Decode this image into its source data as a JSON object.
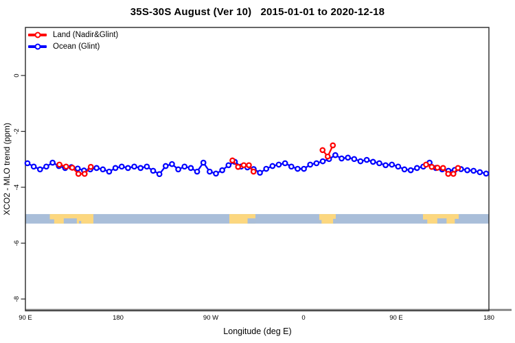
{
  "chart_data": {
    "type": "line",
    "title": "35S-30S August (Ver 10)   2015-01-01 to 2020-12-18",
    "xlabel": "Longitude (deg E)",
    "ylabel": "XCO2 - MLO trend (ppm)",
    "xlim_deg_east": [
      90,
      540
    ],
    "ylim": [
      1.72,
      -8.42
    ],
    "grid": "off",
    "legend_position": "top-left-inside",
    "x_ticks": [
      {
        "lon": 90,
        "label": "90 E"
      },
      {
        "lon": 180,
        "label": "180"
      },
      {
        "lon": 270,
        "label": "90 W"
      },
      {
        "lon": 360,
        "label": "0"
      },
      {
        "lon": 450,
        "label": "90 E"
      },
      {
        "lon": 540,
        "label": "180"
      }
    ],
    "y_ticks": [
      {
        "value": 0,
        "label": "0"
      },
      {
        "value": -2,
        "label": "-2"
      },
      {
        "value": -4,
        "label": "-4"
      },
      {
        "value": -6,
        "label": "-6"
      },
      {
        "value": -8,
        "label": "-8"
      }
    ],
    "series": [
      {
        "name": "Land (Nadir&Glint)",
        "color": "#ff0000",
        "marker": "open-circle",
        "clusters": [
          [
            [
              123,
              -3.19
            ],
            [
              129.5,
              -3.26
            ],
            [
              135.5,
              -3.3
            ],
            [
              141.5,
              -3.52
            ],
            [
              147.5,
              -3.52
            ],
            [
              153.5,
              -3.27
            ]
          ],
          [
            [
              291,
              -3.04
            ],
            [
              296.5,
              -3.27
            ],
            [
              302,
              -3.21
            ],
            [
              307,
              -3.21
            ],
            [
              311.5,
              -3.44
            ]
          ],
          [
            [
              378.5,
              -2.67
            ],
            [
              383.5,
              -2.9
            ],
            [
              388.5,
              -2.5
            ]
          ],
          [
            [
              479,
              -3.19
            ],
            [
              484.5,
              -3.27
            ],
            [
              490,
              -3.3
            ],
            [
              495.5,
              -3.31
            ],
            [
              500.5,
              -3.52
            ],
            [
              505.5,
              -3.52
            ],
            [
              510,
              -3.31
            ]
          ]
        ]
      },
      {
        "name": "Ocean (Glint)",
        "color": "#0000ff",
        "marker": "open-circle",
        "lon_start": 92,
        "lon_step": 6.1,
        "values": [
          -3.14,
          -3.26,
          -3.36,
          -3.26,
          -3.12,
          -3.24,
          -3.31,
          -3.28,
          -3.33,
          -3.4,
          -3.36,
          -3.31,
          -3.36,
          -3.44,
          -3.31,
          -3.26,
          -3.31,
          -3.26,
          -3.31,
          -3.26,
          -3.41,
          -3.53,
          -3.24,
          -3.17,
          -3.36,
          -3.26,
          -3.31,
          -3.44,
          -3.12,
          -3.44,
          -3.51,
          -3.39,
          -3.21,
          -3.09,
          -3.26,
          -3.29,
          -3.35,
          -3.48,
          -3.34,
          -3.24,
          -3.19,
          -3.14,
          -3.26,
          -3.34,
          -3.34,
          -3.19,
          -3.14,
          -3.07,
          -2.99,
          -2.85,
          -2.97,
          -2.94,
          -2.99,
          -3.07,
          -3.02,
          -3.09,
          -3.14,
          -3.21,
          -3.19,
          -3.26,
          -3.36,
          -3.39,
          -3.31,
          -3.26,
          -3.12,
          -3.31,
          -3.36,
          -3.41,
          -3.38,
          -3.35,
          -3.39,
          -3.41,
          -3.46,
          -3.51
        ]
      }
    ],
    "map_strip": {
      "description": "latitude-band world map strip",
      "value_top": -4.96,
      "value_bottom": -5.3,
      "ocean_color": "#a9bed9",
      "land_color": "#fcd77f",
      "patches": [
        {
          "name": "australia",
          "lon0": 113.7,
          "lon1": 156.0,
          "cutouts": [
            [
              0.32,
              0.62,
              0.45,
              1
            ],
            [
              0,
              0.1,
              0.55,
              1
            ],
            [
              0.67,
              0.72,
              0.72,
              1
            ]
          ]
        },
        {
          "name": "south-america",
          "lon0": 288.0,
          "lon1": 313.3,
          "cutouts": [
            [
              0.7,
              1,
              0.45,
              1
            ]
          ]
        },
        {
          "name": "south-africa",
          "lon0": 375.3,
          "lon1": 391.3,
          "cutouts": [
            [
              0,
              0.14,
              0.62,
              1
            ],
            [
              0.84,
              1,
              0.5,
              1
            ]
          ]
        },
        {
          "name": "australia-2",
          "lon0": 476.0,
          "lon1": 510.7,
          "cutouts": [
            [
              0.4,
              0.66,
              0.45,
              1
            ],
            [
              0,
              0.12,
              0.58,
              1
            ],
            [
              0.89,
              1,
              0.5,
              1
            ]
          ]
        }
      ]
    },
    "frame_color": "#262626",
    "x_axis_line_color": "#7f7f7f"
  }
}
